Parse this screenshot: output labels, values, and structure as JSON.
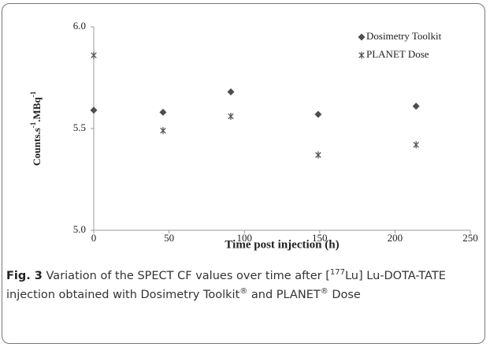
{
  "chart_data": {
    "type": "scatter",
    "x_label": "Time post injection (h)",
    "y_label": [
      "Counts.s",
      "-1",
      ".MBq",
      "-1"
    ],
    "xlim": [
      0,
      250
    ],
    "xticks": [
      0,
      50,
      100,
      150,
      200,
      250
    ],
    "ylim": [
      5.0,
      6.0
    ],
    "yticks": [
      {
        "value": 5.0,
        "label": "5.0"
      },
      {
        "value": 5.5,
        "label": "5.5"
      },
      {
        "value": 6.0,
        "label": "6.0"
      }
    ],
    "legend": "top-right",
    "series": [
      {
        "name": "Dosimetry Toolkit",
        "color": "#4d4d4d",
        "marker": "diamond",
        "x": [
          0,
          46,
          91,
          149,
          214
        ],
        "values": [
          5.59,
          5.58,
          5.68,
          5.57,
          5.61
        ]
      },
      {
        "name": "PLANET Dose",
        "color": "#555555",
        "marker": "asterisk",
        "x": [
          0,
          46,
          91,
          149,
          214
        ],
        "values": [
          5.86,
          5.49,
          5.56,
          5.37,
          5.42
        ]
      }
    ]
  },
  "caption": {
    "label": "Fig. 3",
    "parts": [
      " Variation of the SPECT CF values over time after [",
      "177",
      "Lu] Lu-DOTA-TATE injection obtained with Dosimetry Toolkit",
      "®",
      " and PLANET",
      "®",
      " Dose"
    ]
  }
}
